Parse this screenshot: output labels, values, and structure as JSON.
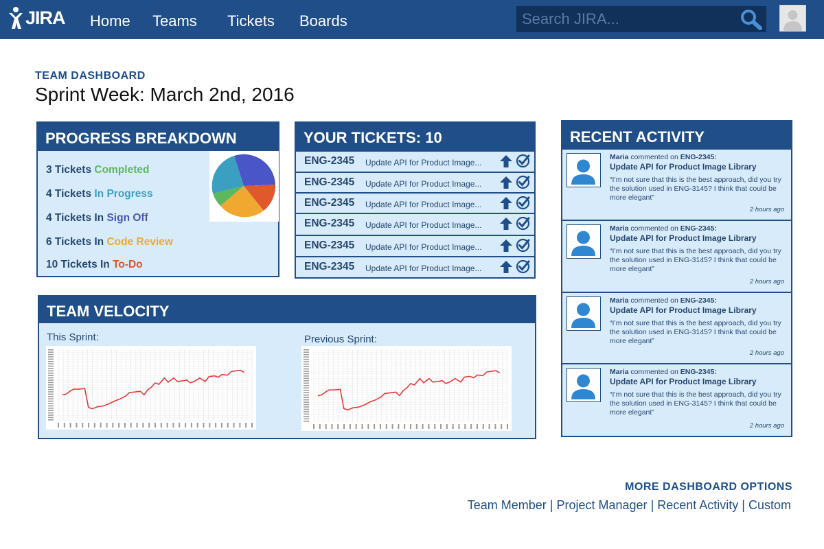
{
  "nav": {
    "logo_text": "JIRA",
    "links": [
      "Home",
      "Teams",
      "Tickets",
      "Boards"
    ],
    "search_placeholder": "Search JIRA..."
  },
  "heading": {
    "section_label": "TEAM DASHBOARD",
    "title": "Sprint Week: March 2nd, 2016"
  },
  "progress": {
    "title": "PROGRESS BREAKDOWN",
    "items": [
      {
        "prefix": "3 Tickets ",
        "status": "Completed",
        "color": "#5cb85c"
      },
      {
        "prefix": "4 Tickets ",
        "status": "In Progress",
        "color": "#3a9fc0"
      },
      {
        "prefix": "4 Tickets In ",
        "status": "Sign Off",
        "color": "#4a55b8"
      },
      {
        "prefix": "6 Tickets In ",
        "status": "Code Review",
        "color": "#f0a830"
      },
      {
        "prefix": "10 Tickets In ",
        "status": "To-Do",
        "color": "#e0522a"
      }
    ],
    "pie_colors": [
      "#4a55c8",
      "#e0582c",
      "#f0a830",
      "#5cb85c",
      "#3a9fc0"
    ]
  },
  "tickets": {
    "title": "YOUR TICKETS: 10",
    "rows": [
      {
        "id": "ENG-2345",
        "desc": "Update API for Product Image..."
      },
      {
        "id": "ENG-2345",
        "desc": "Update API for Product Image..."
      },
      {
        "id": "ENG-2345",
        "desc": "Update API for Product Image..."
      },
      {
        "id": "ENG-2345",
        "desc": "Update API for Product Image..."
      },
      {
        "id": "ENG-2345",
        "desc": "Update API for Product Image..."
      },
      {
        "id": "ENG-2345",
        "desc": "Update API for Product Image..."
      }
    ]
  },
  "velocity": {
    "title": "TEAM VELOCITY",
    "this_label": "This Sprint:",
    "prev_label": "Previous Sprint:",
    "line_color": "#e8393a"
  },
  "activity": {
    "title": "RECENT ACTIVITY",
    "items": [
      {
        "user": "Maria",
        "action": " commented on ",
        "ticket": "ENG-2345:",
        "title": "Update API for Product Image Library",
        "comment": "“I’m not sure that this is the best approach, did you try the solution used in ENG-3145? I think that could be more elegant”",
        "time": "2 hours ago"
      },
      {
        "user": "Maria",
        "action": " commented on ",
        "ticket": "ENG-2345:",
        "title": "Update API for Product Image Library",
        "comment": "“I’m not sure that this is the best approach, did you try the solution used in ENG-3145? I think that could be more elegant”",
        "time": "2 hours ago"
      },
      {
        "user": "Maria",
        "action": " commented on ",
        "ticket": "ENG-2345:",
        "title": "Update API for Product Image Library",
        "comment": "“I’m not sure that this is the best approach, did you try the solution used in ENG-3145? I think that could be more elegant”",
        "time": "2 hours ago"
      },
      {
        "user": "Maria",
        "action": " commented on ",
        "ticket": "ENG-2345:",
        "title": "Update API for Product Image Library",
        "comment": "“I’m not sure that this is the best approach, did you try the solution used in ENG-3145? I think that could be more elegant”",
        "time": "2 hours ago"
      }
    ]
  },
  "footer": {
    "title": "MORE DASHBOARD OPTIONS",
    "links": [
      "Team Member",
      "Project Manager",
      "Recent Activity",
      "Custom"
    ],
    "separator": " | "
  }
}
